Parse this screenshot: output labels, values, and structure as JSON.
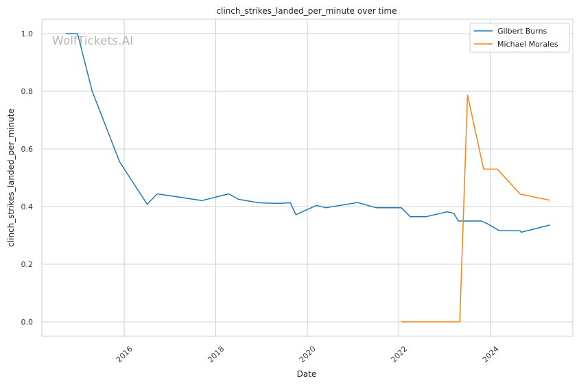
{
  "chart_data": {
    "type": "line",
    "title": "clinch_strikes_landed_per_minute over time",
    "xlabel": "Date",
    "ylabel": "clinch_strikes_landed_per_minute",
    "watermark": "WolfTickets.AI",
    "xlim": [
      2014.2,
      2025.8
    ],
    "ylim": [
      -0.05,
      1.05
    ],
    "x_ticks": [
      2016,
      2018,
      2020,
      2022,
      2024
    ],
    "x_tick_labels": [
      "2016",
      "2018",
      "2020",
      "2022",
      "2024"
    ],
    "y_ticks": [
      0.0,
      0.2,
      0.4,
      0.6,
      0.8,
      1.0
    ],
    "y_tick_labels": [
      "0.0",
      "0.2",
      "0.4",
      "0.6",
      "0.8",
      "1.0"
    ],
    "grid": true,
    "legend_position": "top-right",
    "series": [
      {
        "name": "Gilbert Burns",
        "color": "#1f77b4",
        "x": [
          2014.72,
          2014.98,
          2015.3,
          2015.9,
          2016.5,
          2016.72,
          2017.7,
          2018.28,
          2018.5,
          2018.95,
          2019.35,
          2019.63,
          2019.75,
          2020.2,
          2020.4,
          2021.1,
          2021.5,
          2022.05,
          2022.25,
          2022.6,
          2023.05,
          2023.2,
          2023.3,
          2023.8,
          2023.95,
          2024.2,
          2024.65,
          2024.67,
          2025.3
        ],
        "y": [
          1.0,
          1.0,
          0.8,
          0.555,
          0.408,
          0.444,
          0.421,
          0.444,
          0.425,
          0.413,
          0.411,
          0.413,
          0.372,
          0.404,
          0.396,
          0.414,
          0.396,
          0.396,
          0.365,
          0.365,
          0.382,
          0.377,
          0.35,
          0.35,
          0.339,
          0.316,
          0.316,
          0.311,
          0.336
        ]
      },
      {
        "name": "Michael Morales",
        "color": "#ff7f0e",
        "x": [
          2022.05,
          2023.33,
          2023.5,
          2023.85,
          2024.15,
          2024.65,
          2025.3
        ],
        "y": [
          0.0,
          0.0,
          0.787,
          0.53,
          0.53,
          0.443,
          0.422
        ]
      }
    ]
  }
}
